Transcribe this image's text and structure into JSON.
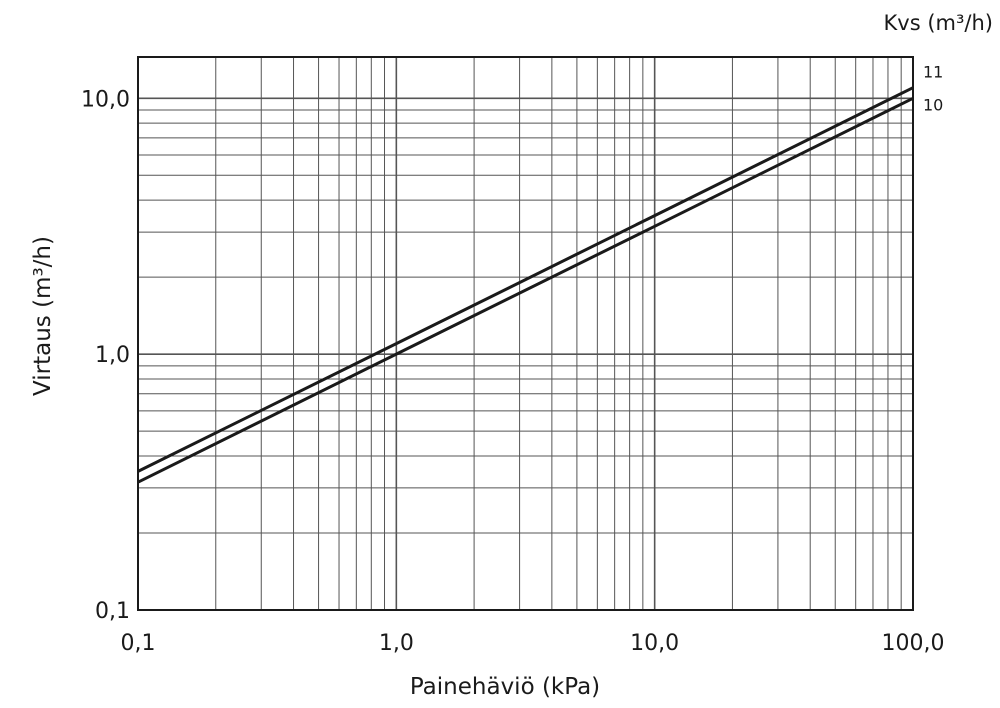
{
  "chart_data": {
    "type": "line",
    "xscale": "log",
    "yscale": "log",
    "xlim": [
      0.1,
      100.0
    ],
    "ylim": [
      0.1,
      14.5
    ],
    "grid": true,
    "xlabel": "Painehäviö (kPa)",
    "ylabel": "Virtaus (m³/h)",
    "legend_title": "Kvs (m³/h)",
    "legend_placement": "top-right",
    "x_ticks": [
      {
        "value": 0.1,
        "label": "0,1"
      },
      {
        "value": 1.0,
        "label": "1,0"
      },
      {
        "value": 10.0,
        "label": "10,0"
      },
      {
        "value": 100.0,
        "label": "100,0"
      }
    ],
    "y_ticks": [
      {
        "value": 0.1,
        "label": "0,1"
      },
      {
        "value": 1.0,
        "label": "1,0"
      },
      {
        "value": 10.0,
        "label": "10,0"
      }
    ],
    "series": [
      {
        "name": "11",
        "x": [
          0.1,
          1.0,
          10.0,
          100.0
        ],
        "values": [
          0.348,
          1.1,
          3.48,
          11.0
        ]
      },
      {
        "name": "10",
        "x": [
          0.1,
          1.0,
          10.0,
          100.0
        ],
        "values": [
          0.316,
          1.0,
          3.16,
          10.0
        ]
      }
    ],
    "line_color": "#1a1a1a",
    "grid_color": "#555555"
  }
}
